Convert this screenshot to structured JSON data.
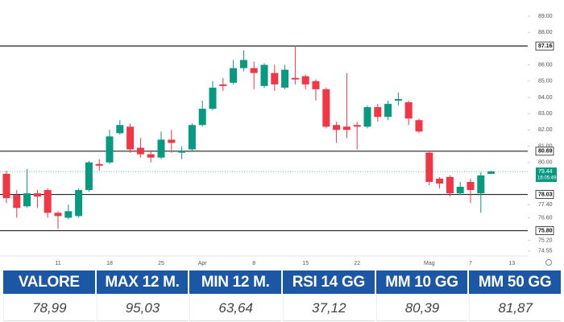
{
  "chart_data": {
    "type": "candlestick",
    "categories": [
      null,
      null,
      null,
      null,
      null,
      "11",
      null,
      null,
      null,
      null,
      "18",
      null,
      null,
      null,
      null,
      "25",
      null,
      null,
      null,
      "Apr",
      null,
      null,
      null,
      null,
      "8",
      null,
      null,
      null,
      null,
      "15",
      null,
      null,
      null,
      null,
      "22",
      null,
      null,
      null,
      null,
      null,
      null,
      "Mag",
      null,
      null,
      null,
      "7",
      null,
      null,
      null,
      "13"
    ],
    "open": [
      79.3,
      78.0,
      77.3,
      78.1,
      78.3,
      76.9,
      76.6,
      76.7,
      78.3,
      79.9,
      80.0,
      81.8,
      82.2,
      80.9,
      80.5,
      80.3,
      81.4,
      80.6,
      80.8,
      82.3,
      83.3,
      84.8,
      84.9,
      85.8,
      85.8,
      84.7,
      85.5,
      84.6,
      85.2,
      85.3,
      85.0,
      84.5,
      82.3,
      82.2,
      82.3,
      82.2,
      83.4,
      82.8,
      83.8,
      83.7,
      82.6,
      80.6,
      79.0,
      79.1,
      78.1,
      78.8,
      78.1,
      79.3,
      null,
      null
    ],
    "high": [
      79.5,
      78.3,
      79.6,
      78.3,
      78.4,
      77.0,
      77.4,
      78.4,
      80.1,
      80.2,
      82.0,
      82.6,
      82.4,
      81.5,
      80.7,
      81.9,
      82.0,
      81.0,
      82.4,
      83.8,
      85.0,
      85.2,
      86.3,
      86.9,
      86.2,
      86.1,
      86.0,
      86.0,
      87.2,
      85.4,
      85.1,
      84.6,
      82.5,
      85.5,
      82.5,
      83.5,
      83.6,
      83.8,
      84.3,
      83.8,
      82.7,
      80.7,
      79.1,
      79.2,
      78.8,
      79.0,
      79.4,
      79.5,
      null,
      null
    ],
    "low": [
      77.5,
      76.6,
      77.2,
      77.2,
      76.6,
      75.9,
      76.5,
      76.6,
      78.2,
      79.5,
      79.9,
      81.7,
      80.6,
      80.3,
      80.0,
      80.2,
      80.6,
      80.2,
      80.7,
      82.2,
      83.2,
      84.4,
      84.8,
      85.6,
      84.5,
      84.6,
      84.4,
      84.5,
      84.8,
      84.5,
      83.8,
      82.1,
      81.2,
      81.5,
      80.8,
      82.1,
      82.5,
      82.6,
      83.5,
      82.3,
      81.8,
      78.6,
      78.4,
      77.9,
      78.0,
      77.5,
      76.9,
      79.3,
      null,
      null
    ],
    "close": [
      77.8,
      77.2,
      78.1,
      77.9,
      76.9,
      76.7,
      77.0,
      78.3,
      80.0,
      79.8,
      81.6,
      82.3,
      80.8,
      80.5,
      80.3,
      81.4,
      81.2,
      80.7,
      82.3,
      83.3,
      84.6,
      84.7,
      85.8,
      86.3,
      85.5,
      86.0,
      84.8,
      85.7,
      85.1,
      84.8,
      84.5,
      82.2,
      82.0,
      82.0,
      82.2,
      83.4,
      82.8,
      83.6,
      83.9,
      82.7,
      81.9,
      78.8,
      78.7,
      78.1,
      78.5,
      78.3,
      79.2,
      79.44,
      null,
      null
    ],
    "up_color": "#089981",
    "down_color": "#f23645",
    "ylim": [
      73.65,
      89.99
    ],
    "yticks": [
      {
        "value": 89,
        "label": "89.00"
      },
      {
        "value": 88,
        "label": "88.00"
      },
      {
        "value": 86,
        "label": "86.00"
      },
      {
        "value": 85,
        "label": "85.00"
      },
      {
        "value": 84,
        "label": "84.00"
      },
      {
        "value": 83,
        "label": "83.00"
      },
      {
        "value": 82,
        "label": "82.00"
      },
      {
        "value": 81,
        "label": "81.00"
      },
      {
        "value": 80,
        "label": "80.00"
      },
      {
        "value": 77.4,
        "label": "77.40"
      },
      {
        "value": 76.6,
        "label": "76.60"
      },
      {
        "value": 75.2,
        "label": "75.20"
      },
      {
        "value": 74.55,
        "label": "74.55"
      }
    ],
    "levels": [
      {
        "value": 87.16,
        "label": "87.16"
      },
      {
        "value": 80.69,
        "label": "80.69"
      },
      {
        "value": 78.03,
        "label": "78.03"
      },
      {
        "value": 75.8,
        "label": "75.80"
      }
    ],
    "last_price": {
      "value": 79.44,
      "label": "79.44",
      "time": "16:05:49"
    }
  },
  "table": {
    "headers": [
      "VALORE",
      "MAX 12 M.",
      "MIN 12 M.",
      "RSI 14 GG",
      "MM 10 GG",
      "MM 50 GG"
    ],
    "values": [
      "78,99",
      "95,03",
      "63,64",
      "37,12",
      "80,39",
      "81,87"
    ]
  }
}
